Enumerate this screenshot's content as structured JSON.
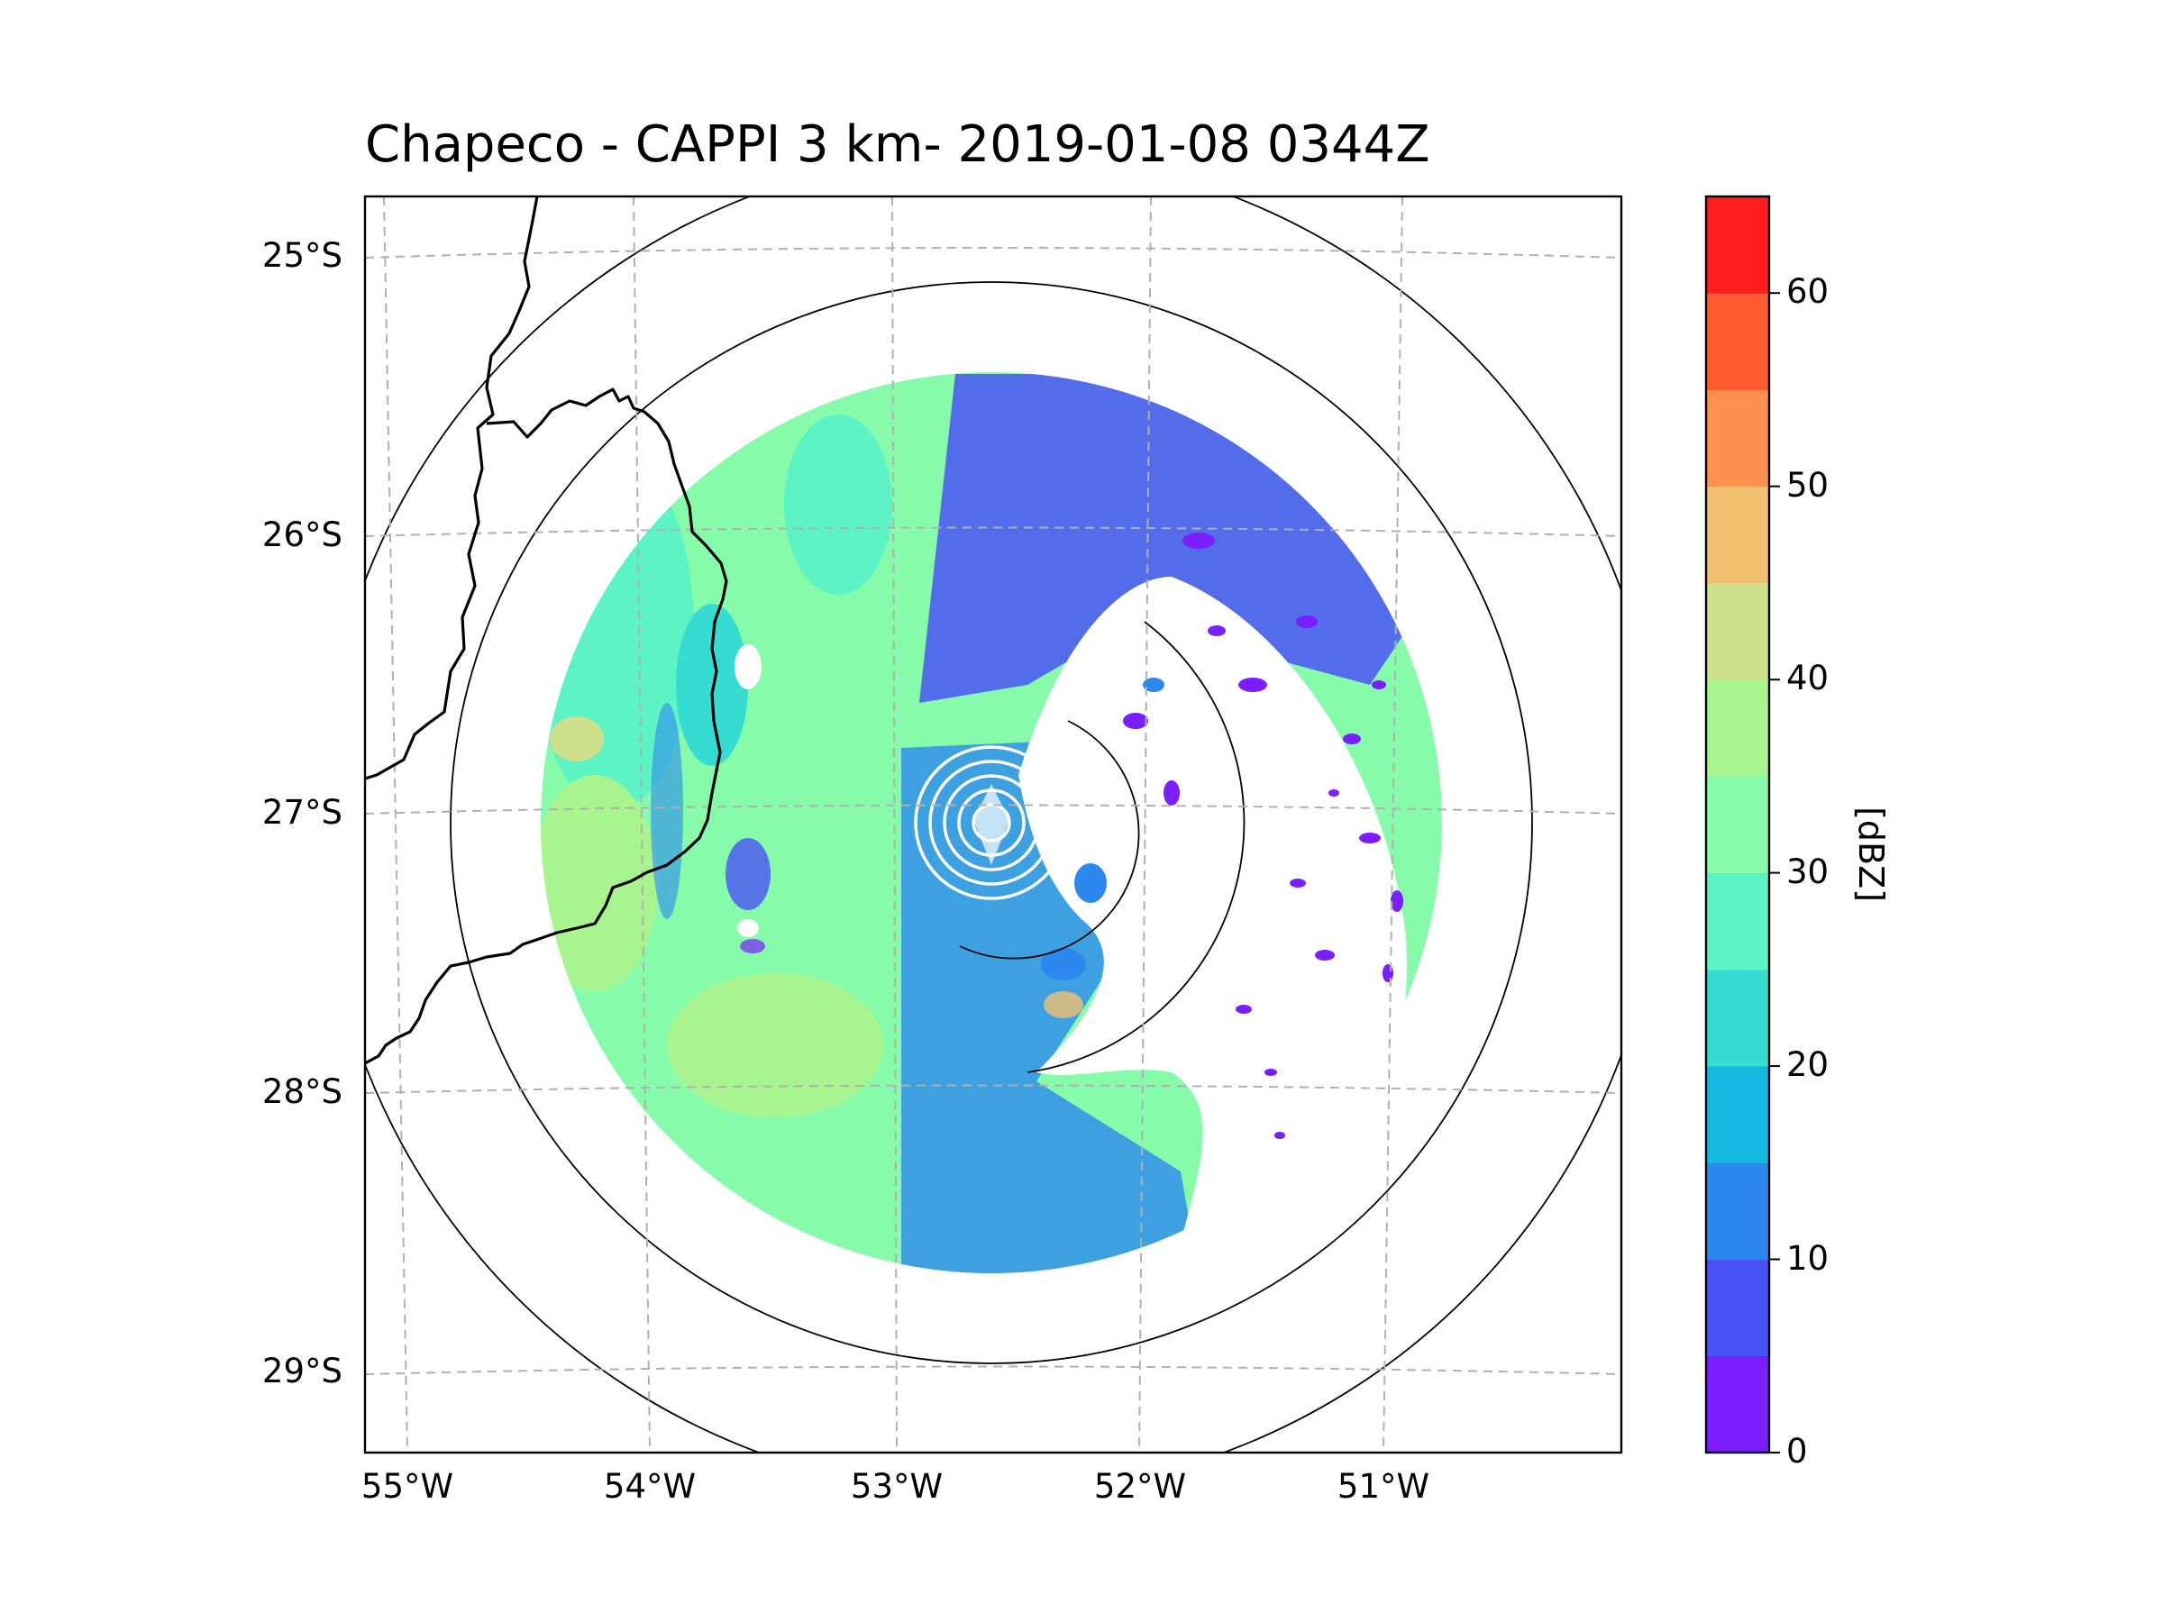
{
  "title": "Chapeco - CAPPI 3 km- 2019-01-08 0344Z",
  "map": {
    "lat_ticks": [
      "25°S",
      "26°S",
      "27°S",
      "28°S",
      "29°S"
    ],
    "lon_ticks": [
      "55°W",
      "54°W",
      "53°W",
      "52°W",
      "51°W"
    ],
    "gridlines": "dashed",
    "range_rings_km": [
      100,
      200,
      300
    ],
    "radar_site": "Chapeco"
  },
  "colorbar": {
    "label": "[dBZ]",
    "ticks": [
      "0",
      "10",
      "20",
      "30",
      "40",
      "50",
      "60"
    ],
    "min": 0,
    "max": 65,
    "step": 5,
    "colors": [
      "#7a1dff",
      "#4a54f6",
      "#2b88ee",
      "#14b8e0",
      "#34dcd2",
      "#5cf4c4",
      "#86fcaa",
      "#a8f48e",
      "#cee08a",
      "#f2c071",
      "#ff9050",
      "#ff5a30",
      "#ff1e1e"
    ]
  }
}
